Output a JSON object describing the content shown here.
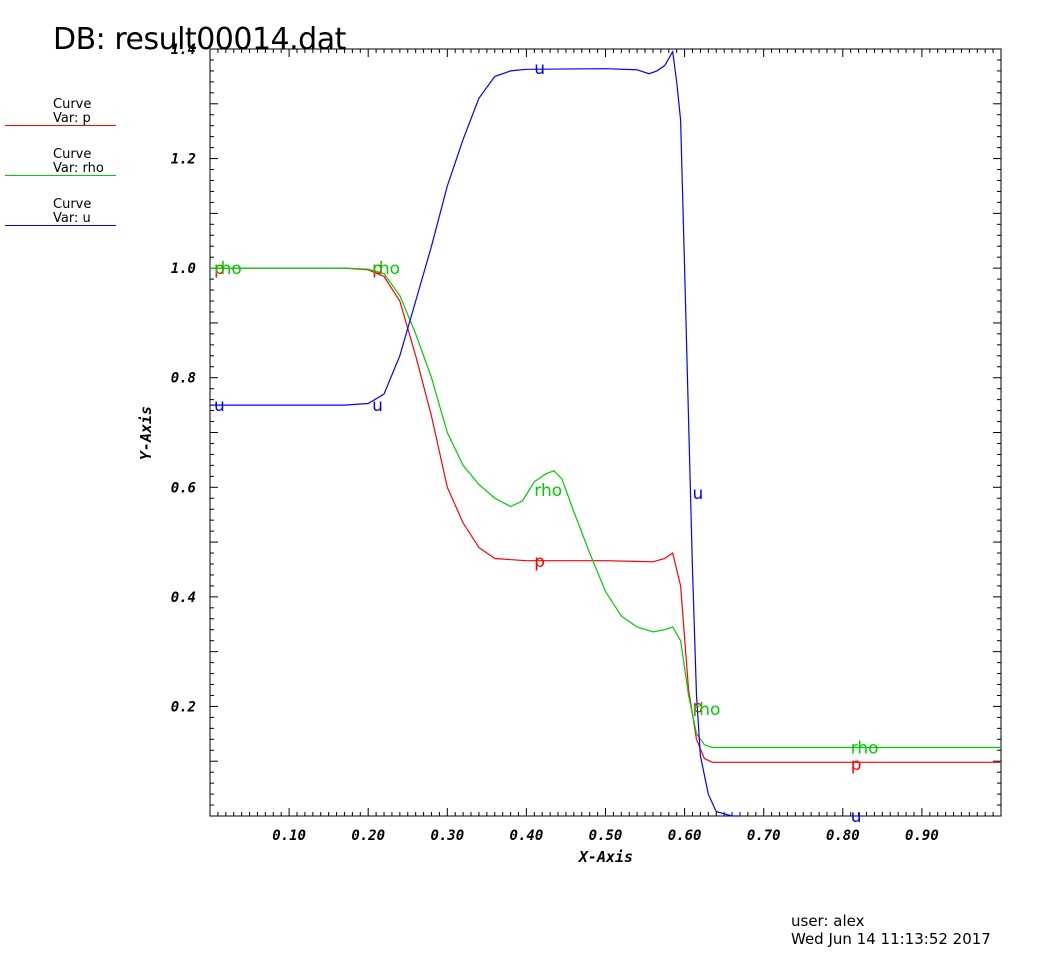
{
  "header": {
    "title": "DB: result00014.dat"
  },
  "legend": [
    {
      "line1": "Curve",
      "line2": "Var: p",
      "color": "#ff0000"
    },
    {
      "line1": "Curve",
      "line2": "Var: rho",
      "color": "#00cc00"
    },
    {
      "line1": "Curve",
      "line2": "Var: u",
      "color": "#0000ff"
    }
  ],
  "footer": {
    "user": "user: alex",
    "date": "Wed Jun 14 11:13:52 2017"
  },
  "chart_data": {
    "type": "line",
    "title": "",
    "xlabel": "X-Axis",
    "ylabel": "Y-Axis",
    "xlim": [
      0.0,
      1.0
    ],
    "ylim": [
      0.0,
      1.4
    ],
    "xticks": [
      0.1,
      0.2,
      0.3,
      0.4,
      0.5,
      0.6,
      0.7,
      0.8,
      0.9
    ],
    "xtick_labels": [
      "0.10",
      "0.20",
      "0.30",
      "0.40",
      "0.50",
      "0.60",
      "0.70",
      "0.80",
      "0.90"
    ],
    "yticks": [
      0.2,
      0.4,
      0.6,
      0.8,
      1.0,
      1.2,
      1.4
    ],
    "ytick_labels": [
      "0.2",
      "0.4",
      "0.6",
      "0.8",
      "1.0",
      "1.2",
      "1.4"
    ],
    "grid": false,
    "series": [
      {
        "name": "p",
        "color": "#ff0000",
        "label_points": [
          [
            0.005,
            1.0
          ],
          [
            0.205,
            1.0
          ],
          [
            0.41,
            0.465
          ],
          [
            0.61,
            0.2
          ],
          [
            0.81,
            0.095
          ]
        ],
        "points": [
          [
            0.0,
            1.0
          ],
          [
            0.17,
            1.0
          ],
          [
            0.2,
            0.997
          ],
          [
            0.22,
            0.985
          ],
          [
            0.24,
            0.94
          ],
          [
            0.26,
            0.84
          ],
          [
            0.28,
            0.73
          ],
          [
            0.3,
            0.6
          ],
          [
            0.32,
            0.535
          ],
          [
            0.34,
            0.49
          ],
          [
            0.36,
            0.47
          ],
          [
            0.4,
            0.466
          ],
          [
            0.5,
            0.466
          ],
          [
            0.56,
            0.464
          ],
          [
            0.575,
            0.47
          ],
          [
            0.585,
            0.48
          ],
          [
            0.595,
            0.42
          ],
          [
            0.605,
            0.23
          ],
          [
            0.615,
            0.14
          ],
          [
            0.625,
            0.105
          ],
          [
            0.635,
            0.098
          ],
          [
            1.0,
            0.098
          ]
        ]
      },
      {
        "name": "rho",
        "color": "#00cc00",
        "label_points": [
          [
            0.005,
            1.0
          ],
          [
            0.205,
            1.0
          ],
          [
            0.41,
            0.595
          ],
          [
            0.61,
            0.195
          ],
          [
            0.81,
            0.125
          ]
        ],
        "points": [
          [
            0.0,
            1.0
          ],
          [
            0.17,
            1.0
          ],
          [
            0.2,
            0.998
          ],
          [
            0.22,
            0.99
          ],
          [
            0.24,
            0.95
          ],
          [
            0.26,
            0.88
          ],
          [
            0.28,
            0.8
          ],
          [
            0.3,
            0.7
          ],
          [
            0.32,
            0.64
          ],
          [
            0.34,
            0.605
          ],
          [
            0.36,
            0.58
          ],
          [
            0.38,
            0.565
          ],
          [
            0.395,
            0.575
          ],
          [
            0.41,
            0.61
          ],
          [
            0.425,
            0.625
          ],
          [
            0.435,
            0.63
          ],
          [
            0.445,
            0.615
          ],
          [
            0.46,
            0.555
          ],
          [
            0.48,
            0.48
          ],
          [
            0.5,
            0.41
          ],
          [
            0.52,
            0.365
          ],
          [
            0.54,
            0.345
          ],
          [
            0.56,
            0.336
          ],
          [
            0.575,
            0.34
          ],
          [
            0.585,
            0.345
          ],
          [
            0.595,
            0.32
          ],
          [
            0.605,
            0.22
          ],
          [
            0.615,
            0.15
          ],
          [
            0.625,
            0.13
          ],
          [
            0.635,
            0.125
          ],
          [
            1.0,
            0.125
          ]
        ]
      },
      {
        "name": "u",
        "color": "#0000ff",
        "label_points": [
          [
            0.005,
            0.75
          ],
          [
            0.205,
            0.75
          ],
          [
            0.41,
            1.365
          ],
          [
            0.61,
            0.59
          ],
          [
            0.81,
            0.0
          ]
        ],
        "points": [
          [
            0.0,
            0.75
          ],
          [
            0.17,
            0.75
          ],
          [
            0.2,
            0.753
          ],
          [
            0.22,
            0.77
          ],
          [
            0.24,
            0.84
          ],
          [
            0.26,
            0.94
          ],
          [
            0.28,
            1.04
          ],
          [
            0.3,
            1.15
          ],
          [
            0.32,
            1.235
          ],
          [
            0.34,
            1.31
          ],
          [
            0.36,
            1.35
          ],
          [
            0.38,
            1.36
          ],
          [
            0.4,
            1.363
          ],
          [
            0.5,
            1.364
          ],
          [
            0.54,
            1.362
          ],
          [
            0.555,
            1.355
          ],
          [
            0.565,
            1.36
          ],
          [
            0.575,
            1.37
          ],
          [
            0.585,
            1.395
          ],
          [
            0.59,
            1.34
          ],
          [
            0.595,
            1.27
          ],
          [
            0.6,
            1.0
          ],
          [
            0.605,
            0.72
          ],
          [
            0.61,
            0.45
          ],
          [
            0.615,
            0.22
          ],
          [
            0.62,
            0.11
          ],
          [
            0.63,
            0.04
          ],
          [
            0.64,
            0.008
          ],
          [
            0.66,
            0.0
          ],
          [
            0.67,
            0.0
          ]
        ]
      }
    ]
  }
}
